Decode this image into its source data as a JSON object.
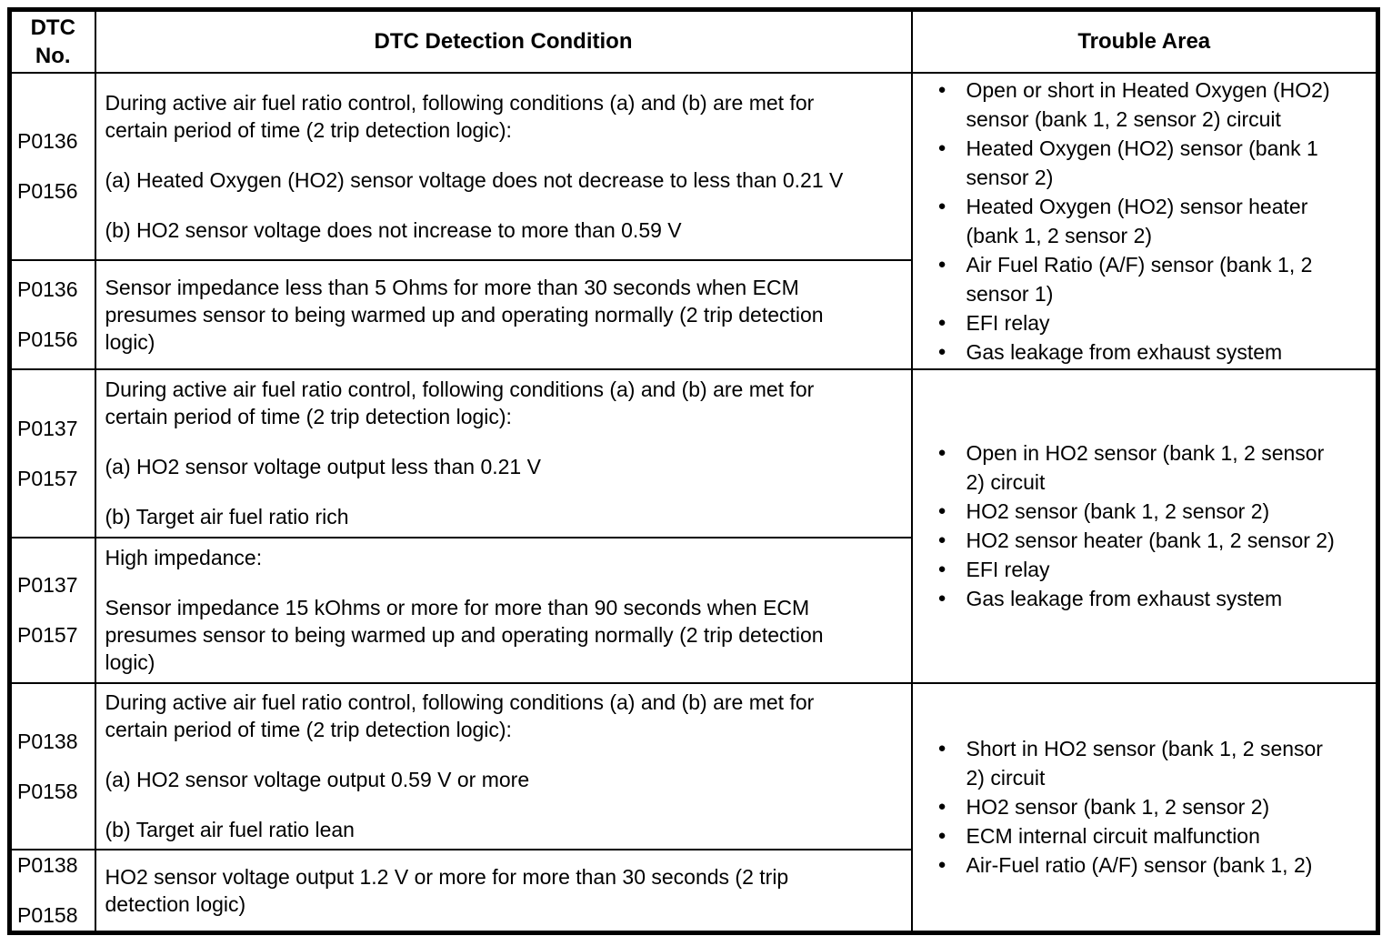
{
  "header": {
    "col1": [
      "DTC",
      "No."
    ],
    "col2": "DTC Detection Condition",
    "col3": "Trouble Area"
  },
  "ui": {
    "bullet": "●",
    "text_color": "#000000",
    "background_color": "#ffffff"
  },
  "rows": [
    {
      "dtc": [
        "P0136",
        "P0156"
      ],
      "paras": [
        [
          "During active air fuel ratio control, following conditions (a) and (b) are met for",
          "certain period of time (2 trip detection logic):"
        ],
        [
          "(a) Heated Oxygen (HO2) sensor voltage does not decrease to less than 0.21 V"
        ],
        [
          "(b) HO2 sensor voltage does not increase to more than 0.59 V"
        ]
      ]
    },
    {
      "dtc": [
        "P0136",
        "P0156"
      ],
      "paras": [
        [
          "Sensor impedance less than 5 Ohms for more than 30 seconds when ECM",
          "presumes sensor to being warmed up and operating normally (2 trip detection",
          "logic)"
        ]
      ]
    },
    {
      "dtc": [
        "P0137",
        "P0157"
      ],
      "paras": [
        [
          "During active air fuel ratio control, following conditions (a) and (b) are met for",
          "certain period of time (2 trip detection logic):"
        ],
        [
          "(a) HO2 sensor voltage output less than 0.21 V"
        ],
        [
          "(b) Target air fuel ratio rich"
        ]
      ]
    },
    {
      "dtc": [
        "P0137",
        "P0157"
      ],
      "paras": [
        [
          "High impedance:"
        ],
        [
          "Sensor impedance 15 kOhms or more for more than 90 seconds when ECM",
          "presumes sensor to being warmed up and operating normally (2 trip detection",
          "logic)"
        ]
      ]
    },
    {
      "dtc": [
        "P0138",
        "P0158"
      ],
      "paras": [
        [
          "During active air fuel ratio control, following conditions (a) and (b) are met for",
          "certain period of time (2 trip detection logic):"
        ],
        [
          "(a) HO2 sensor voltage output 0.59 V or more"
        ],
        [
          "(b) Target air fuel ratio lean"
        ]
      ]
    },
    {
      "dtc": [
        "P0138",
        "P0158"
      ],
      "paras": [
        [
          "HO2 sensor voltage output 1.2 V or more for more than 30 seconds (2 trip",
          "detection logic)"
        ]
      ]
    }
  ],
  "trouble": [
    {
      "items": [
        [
          "Open or short in Heated Oxygen (HO2)",
          "sensor (bank 1, 2 sensor 2) circuit"
        ],
        [
          "Heated Oxygen (HO2) sensor (bank 1",
          "sensor 2)"
        ],
        [
          "Heated Oxygen (HO2) sensor heater",
          "(bank 1, 2 sensor 2)"
        ],
        [
          "Air Fuel Ratio (A/F) sensor (bank 1, 2",
          "sensor 1)"
        ],
        [
          "EFI relay"
        ],
        [
          "Gas leakage from exhaust system"
        ]
      ]
    },
    {
      "items": [
        [
          "Open in HO2 sensor (bank 1, 2 sensor",
          "2) circuit"
        ],
        [
          "HO2 sensor (bank 1, 2 sensor 2)"
        ],
        [
          "HO2 sensor heater (bank 1, 2 sensor 2)"
        ],
        [
          "EFI relay"
        ],
        [
          "Gas leakage from exhaust system"
        ]
      ]
    },
    {
      "items": [
        [
          "Short in HO2 sensor (bank 1, 2 sensor",
          "2) circuit"
        ],
        [
          "HO2 sensor (bank 1, 2 sensor 2)"
        ],
        [
          "ECM internal circuit malfunction"
        ],
        [
          "Air-Fuel ratio (A/F) sensor (bank 1, 2)"
        ]
      ]
    }
  ]
}
